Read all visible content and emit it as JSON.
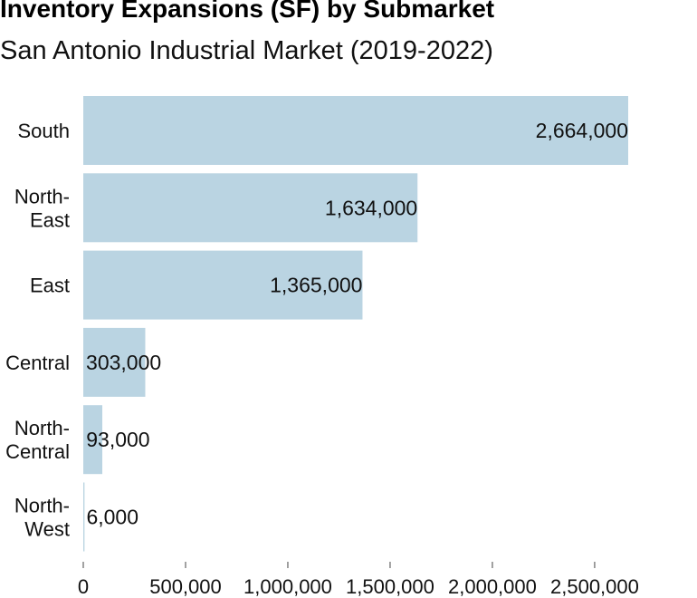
{
  "chart_data": {
    "type": "bar",
    "orientation": "horizontal",
    "title": "Inventory Expansions (SF) by Submarket",
    "subtitle": "San Antonio Industrial Market (2019-2022)",
    "categories": [
      [
        "South"
      ],
      [
        "North-",
        "East"
      ],
      [
        "East"
      ],
      [
        "Central"
      ],
      [
        "North-",
        "Central"
      ],
      [
        "North-",
        "West"
      ]
    ],
    "values": [
      2664000,
      1634000,
      1365000,
      303000,
      93000,
      6000
    ],
    "value_labels": [
      "2,664,000",
      "1,634,000",
      "1,365,000",
      "303,000",
      "93,000",
      "6,000"
    ],
    "xlim": [
      0,
      2664000
    ],
    "x_ticks": [
      0,
      500000,
      1000000,
      1500000,
      2000000,
      2500000
    ],
    "x_tick_labels": [
      "0",
      "500,000",
      "1,000,000",
      "1,500,000",
      "2,000,000",
      "2,500,000"
    ],
    "grid": false,
    "legend": "none",
    "bar_color": "#bad4e2"
  }
}
